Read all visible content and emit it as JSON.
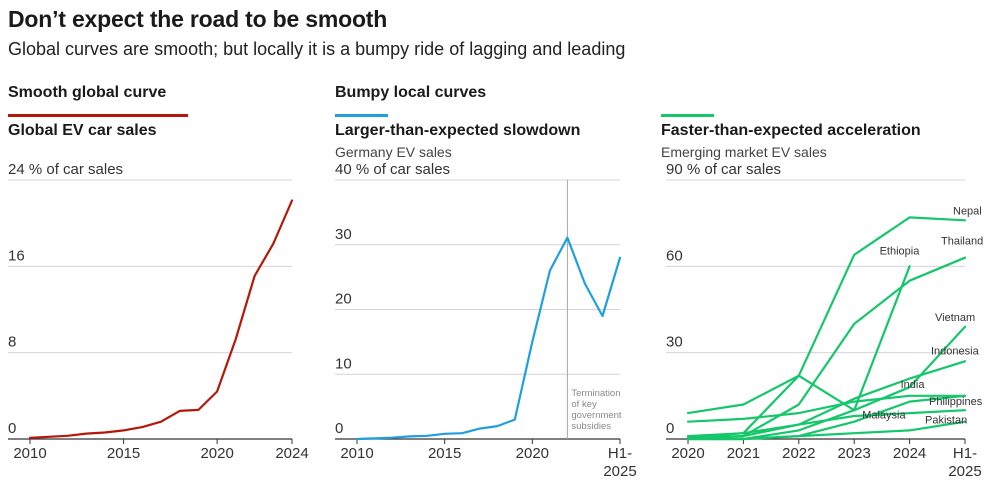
{
  "header": {
    "title": "Don’t expect the road to be smooth",
    "subtitle": "Global curves are smooth; but locally it is a bumpy ride of lagging and leading"
  },
  "colors": {
    "red": "#b5170a",
    "blue": "#1f9fde",
    "green": "#14c76a",
    "grid": "#d4d4d4",
    "axis": "#333333"
  },
  "chart_data": [
    {
      "type": "line",
      "kind_label": "Smooth global curve",
      "title": "Global EV car sales",
      "subtitle": "",
      "unit_label": "% of car sales",
      "ylim": [
        0,
        24
      ],
      "yticks": [
        0,
        8,
        16,
        24
      ],
      "xlim": [
        2010,
        2024
      ],
      "xticks": [
        {
          "value": 2010,
          "label": "2010"
        },
        {
          "value": 2015,
          "label": "2015"
        },
        {
          "value": 2020,
          "label": "2020"
        },
        {
          "value": 2024,
          "label": "2024"
        }
      ],
      "series": [
        {
          "name": "Global",
          "color": "#b5170a",
          "x": [
            2010,
            2011,
            2012,
            2013,
            2014,
            2015,
            2016,
            2017,
            2018,
            2019,
            2020,
            2021,
            2022,
            2023,
            2024
          ],
          "y": [
            0.1,
            0.2,
            0.3,
            0.5,
            0.6,
            0.8,
            1.1,
            1.6,
            2.6,
            2.7,
            4.4,
            9.3,
            15.1,
            18.1,
            22.1
          ]
        }
      ]
    },
    {
      "type": "line",
      "kind_label": "Bumpy local curves",
      "title": "Larger-than-expected slowdown",
      "subtitle": "Germany EV sales",
      "unit_label": "% of car sales",
      "ylim": [
        0,
        40
      ],
      "yticks": [
        0,
        10,
        20,
        30,
        40
      ],
      "xlim": [
        2010,
        2025
      ],
      "xticks": [
        {
          "value": 2010,
          "label": "2010"
        },
        {
          "value": 2015,
          "label": "2015"
        },
        {
          "value": 2020,
          "label": "2020"
        },
        {
          "value": 2025,
          "label": "H1-\n2025"
        }
      ],
      "series": [
        {
          "name": "Germany",
          "color": "#1f9fde",
          "x": [
            2010,
            2011,
            2012,
            2013,
            2014,
            2015,
            2016,
            2017,
            2018,
            2019,
            2020,
            2021,
            2022,
            2023,
            2024,
            2025
          ],
          "y": [
            0.0,
            0.1,
            0.2,
            0.4,
            0.5,
            0.8,
            0.9,
            1.6,
            2.0,
            3.0,
            15.0,
            26.0,
            31.1,
            24.0,
            19.0,
            28.0
          ]
        }
      ],
      "annotation": {
        "x": 2022,
        "text": "Termination\nof key\ngovernment\nsubsidies"
      }
    },
    {
      "type": "line",
      "kind_label": "",
      "title": "Faster-than-expected acceleration",
      "subtitle": "Emerging market EV sales",
      "unit_label": "% of car sales",
      "ylim": [
        0,
        90
      ],
      "yticks": [
        0,
        30,
        60,
        90
      ],
      "xlim": [
        2020,
        2025
      ],
      "xticks": [
        {
          "value": 2020,
          "label": "2020"
        },
        {
          "value": 2021,
          "label": "2021"
        },
        {
          "value": 2022,
          "label": "2022"
        },
        {
          "value": 2023,
          "label": "2023"
        },
        {
          "value": 2024,
          "label": "2024"
        },
        {
          "value": 2025,
          "label": "H1-\n2025"
        }
      ],
      "series": [
        {
          "name": "Nepal",
          "color": "#14c76a",
          "x": [
            2020,
            2021,
            2022,
            2023,
            2024,
            2025
          ],
          "y": [
            1,
            2,
            22,
            64,
            77,
            76
          ]
        },
        {
          "name": "Thailand",
          "color": "#14c76a",
          "x": [
            2020,
            2021,
            2022,
            2023,
            2024,
            2025
          ],
          "y": [
            0.5,
            1,
            12,
            40,
            55,
            63
          ]
        },
        {
          "name": "Ethiopia",
          "color": "#14c76a",
          "x": [
            2020,
            2021,
            2022,
            2023,
            2024
          ],
          "y": [
            9,
            12,
            22,
            10,
            60
          ]
        },
        {
          "name": "Vietnam",
          "color": "#14c76a",
          "x": [
            2020,
            2021,
            2022,
            2023,
            2024,
            2025
          ],
          "y": [
            0,
            0,
            3,
            10,
            18,
            39
          ]
        },
        {
          "name": "Indonesia",
          "color": "#14c76a",
          "x": [
            2020,
            2021,
            2022,
            2023,
            2024,
            2025
          ],
          "y": [
            0,
            1,
            5,
            14,
            21,
            27
          ]
        },
        {
          "name": "India",
          "color": "#14c76a",
          "x": [
            2020,
            2021,
            2022,
            2023,
            2024,
            2025
          ],
          "y": [
            6,
            7,
            9,
            13,
            15,
            15
          ]
        },
        {
          "name": "Malaysia",
          "color": "#14c76a",
          "x": [
            2020,
            2021,
            2022,
            2023,
            2024,
            2025
          ],
          "y": [
            0,
            0,
            1,
            6,
            13,
            15
          ]
        },
        {
          "name": "Philippines",
          "color": "#14c76a",
          "x": [
            2020,
            2021,
            2022,
            2023,
            2024,
            2025
          ],
          "y": [
            0.5,
            2,
            5,
            8,
            9,
            10
          ]
        },
        {
          "name": "Pakistan",
          "color": "#14c76a",
          "x": [
            2020,
            2021,
            2022,
            2023,
            2024,
            2025
          ],
          "y": [
            0,
            0,
            1,
            2,
            3,
            6
          ]
        }
      ]
    }
  ]
}
